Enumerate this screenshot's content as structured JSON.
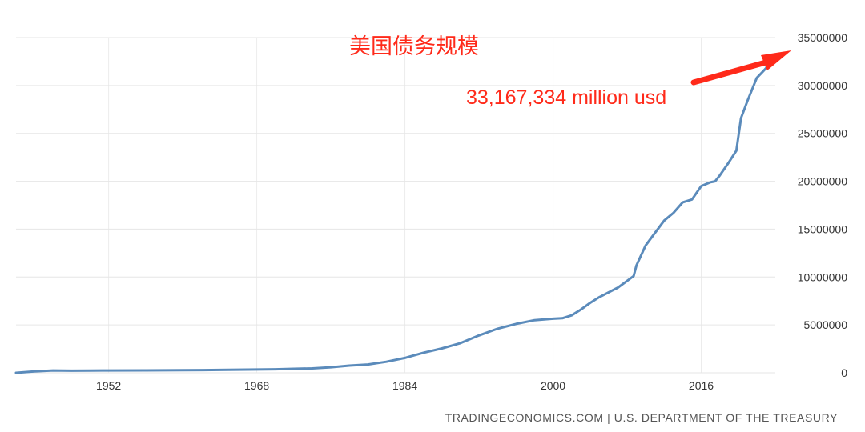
{
  "header": {
    "title": "美国债务规模",
    "annotation": "33,167,334 million usd"
  },
  "footer": {
    "source": "TRADINGECONOMICS.COM | U.S. DEPARTMENT OF THE TREASURY"
  },
  "colors": {
    "series": "#5b8bbb",
    "annotation": "#ff2a1a",
    "arrow": "#ff2a1a"
  },
  "chart_data": {
    "type": "line",
    "title": "",
    "xlabel": "",
    "ylabel": "",
    "xlim": [
      1942,
      2024
    ],
    "ylim": [
      0,
      35000000
    ],
    "x_ticks": [
      "1952",
      "1968",
      "1984",
      "2000",
      "2016"
    ],
    "y_ticks": [
      "0",
      "5000000",
      "10000000",
      "15000000",
      "20000000",
      "25000000",
      "30000000",
      "35000000"
    ],
    "grid": "horizontal",
    "legend": "none",
    "series": [
      {
        "x": [
          1942,
          1944,
          1946,
          1948,
          1950,
          1952,
          1956,
          1960,
          1964,
          1968,
          1970,
          1972,
          1974,
          1976,
          1978,
          1980,
          1982,
          1984,
          1986,
          1988,
          1990,
          1992,
          1994,
          1996,
          1998,
          2000,
          2001,
          2002,
          2003,
          2004,
          2005,
          2006,
          2007,
          2008,
          2008.7,
          2009,
          2010,
          2011,
          2012,
          2013,
          2014,
          2015,
          2016,
          2017,
          2017.5,
          2018,
          2019,
          2019.8,
          2020.3,
          2021,
          2022,
          2022.5,
          2023,
          2023.6
        ],
        "values": [
          0,
          140000,
          240000,
          220000,
          230000,
          240000,
          250000,
          270000,
          300000,
          340000,
          370000,
          420000,
          460000,
          580000,
          750000,
          870000,
          1150000,
          1550000,
          2100000,
          2550000,
          3100000,
          3900000,
          4600000,
          5100000,
          5500000,
          5650000,
          5700000,
          6000000,
          6600000,
          7300000,
          7900000,
          8400000,
          8900000,
          9600000,
          10100000,
          11200000,
          13300000,
          14600000,
          15900000,
          16700000,
          17800000,
          18100000,
          19500000,
          19900000,
          20000000,
          20600000,
          22000000,
          23200000,
          26600000,
          28400000,
          30800000,
          31300000,
          31800000,
          33167334
        ]
      }
    ],
    "annotations": [
      "33,167,334 million usd"
    ]
  }
}
